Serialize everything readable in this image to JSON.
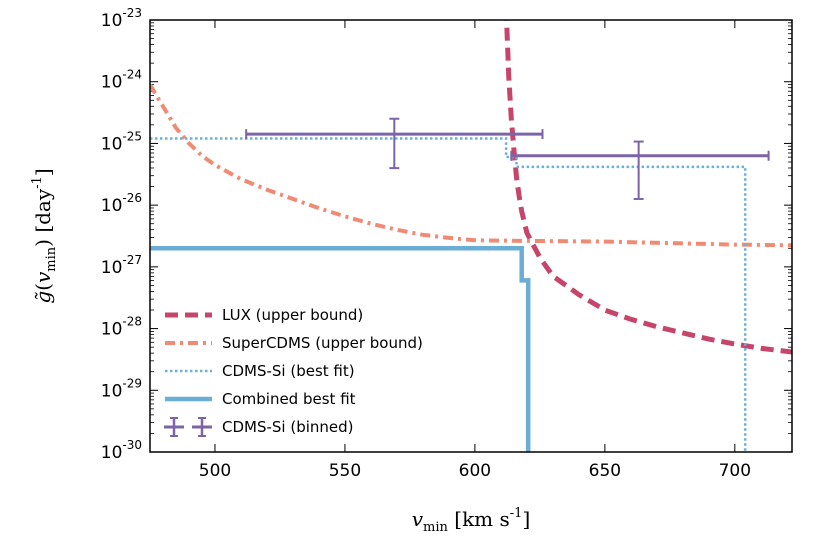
{
  "chart_data": {
    "type": "line",
    "xlabel": "v_min [km s^-1]",
    "ylabel": "g̃(v_min) [day^-1]",
    "xlim": [
      475,
      722
    ],
    "ylim_log10": [
      -30,
      -23
    ],
    "x_ticks": [
      500,
      550,
      600,
      650,
      700
    ],
    "x_tick_labels": [
      "500",
      "550",
      "600",
      "650",
      "700"
    ],
    "y_ticks_log10": [
      -30,
      -29,
      -28,
      -27,
      -26,
      -25,
      -24,
      -23
    ],
    "y_tick_labels": [
      {
        "base": "10",
        "exp": "-30"
      },
      {
        "base": "10",
        "exp": "-29"
      },
      {
        "base": "10",
        "exp": "-28"
      },
      {
        "base": "10",
        "exp": "-27"
      },
      {
        "base": "10",
        "exp": "-26"
      },
      {
        "base": "10",
        "exp": "-25"
      },
      {
        "base": "10",
        "exp": "-24"
      },
      {
        "base": "10",
        "exp": "-23"
      }
    ],
    "legend_position": "lower-left",
    "series": [
      {
        "name": "LUX (upper bound)",
        "style": "dashed",
        "color": "#c6466b",
        "x": [
          612,
          613,
          614,
          615,
          616,
          617,
          618,
          620,
          625,
          630,
          640,
          650,
          660,
          670,
          680,
          690,
          700,
          710,
          722
        ],
        "log10y": [
          -22.8,
          -23.9,
          -24.6,
          -25.1,
          -25.55,
          -25.85,
          -26.1,
          -26.45,
          -26.85,
          -27.15,
          -27.45,
          -27.7,
          -27.85,
          -27.97,
          -28.07,
          -28.17,
          -28.25,
          -28.32,
          -28.38
        ]
      },
      {
        "name": "SuperCDMS (upper bound)",
        "style": "dashdot",
        "color": "#f08a72",
        "x": [
          475,
          480,
          485,
          490,
          495,
          500,
          510,
          520,
          530,
          540,
          550,
          560,
          570,
          580,
          590,
          600,
          620,
          650,
          680,
          700,
          722
        ],
        "log10y": [
          -24.05,
          -24.4,
          -24.75,
          -25.0,
          -25.2,
          -25.35,
          -25.58,
          -25.75,
          -25.9,
          -26.05,
          -26.18,
          -26.3,
          -26.4,
          -26.48,
          -26.53,
          -26.57,
          -26.58,
          -26.59,
          -26.62,
          -26.64,
          -26.65
        ]
      },
      {
        "name": "CDMS-Si (best fit)",
        "style": "dotted",
        "color": "#6ab1d8",
        "x": [
          475,
          612,
          612,
          616,
          616,
          704,
          704
        ],
        "log10y": [
          -24.92,
          -24.92,
          -25.22,
          -25.22,
          -25.38,
          -25.38,
          -30
        ]
      },
      {
        "name": "Combined best fit",
        "style": "solid",
        "color": "#6aaed6",
        "x": [
          475,
          618,
          618,
          620.5,
          620.5
        ],
        "log10y": [
          -26.7,
          -26.7,
          -27.22,
          -27.22,
          -30
        ]
      },
      {
        "name": "CDMS-Si (binned)",
        "style": "errorbar",
        "color": "#7b64a8",
        "points": [
          {
            "x": 569,
            "log10y": -24.85,
            "xmin": 512,
            "xmax": 626,
            "log10y_low": -25.4,
            "log10y_high": -24.6
          },
          {
            "x": 663,
            "log10y": -25.2,
            "xmin": 614,
            "xmax": 713,
            "log10y_low": -25.9,
            "log10y_high": -24.97
          }
        ]
      }
    ]
  }
}
